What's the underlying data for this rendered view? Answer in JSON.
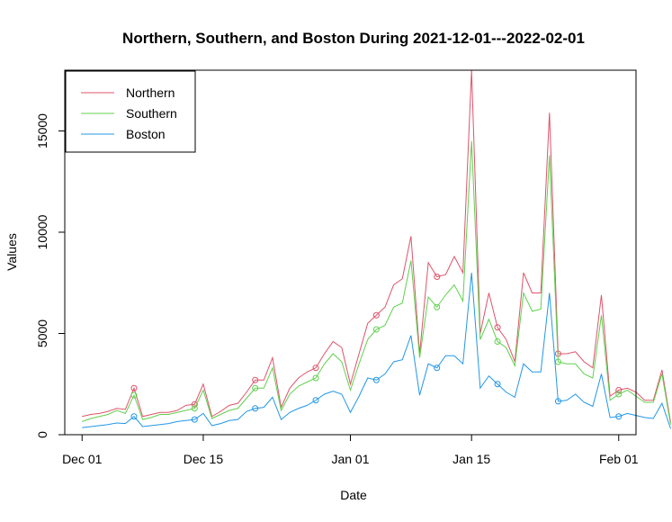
{
  "chart_data": {
    "type": "line",
    "title": "Northern, Southern, and Boston During 2021-12-01---2022-02-01",
    "xlabel": "Date",
    "ylabel": "Values",
    "x_start": "2021-12-01",
    "x_ticks": [
      {
        "label": "Dec 01",
        "date": "2021-12-01"
      },
      {
        "label": "Dec 15",
        "date": "2021-12-15"
      },
      {
        "label": "Jan 01",
        "date": "2022-01-01"
      },
      {
        "label": "Jan 15",
        "date": "2022-01-15"
      },
      {
        "label": "Feb 01",
        "date": "2022-02-01"
      }
    ],
    "y_ticks": [
      0,
      5000,
      10000,
      15000
    ],
    "y_tick_labels": [
      "0",
      "5000",
      "10000",
      "15000"
    ],
    "xlim": [
      "2021-11-29",
      "2022-02-03"
    ],
    "ylim": [
      0,
      18000
    ],
    "grid": false,
    "legend_position": "top-left",
    "marker_every": 7,
    "series": [
      {
        "name": "Northern",
        "color": "#DF536B",
        "values": [
          900,
          1000,
          1050,
          1150,
          1300,
          1250,
          2300,
          900,
          1000,
          1100,
          1100,
          1200,
          1450,
          1500,
          2500,
          900,
          1150,
          1450,
          1550,
          2100,
          2700,
          2700,
          3800,
          1350,
          2300,
          2800,
          3100,
          3300,
          4000,
          4600,
          4300,
          2500,
          4000,
          5500,
          5900,
          6300,
          7400,
          7700,
          9800,
          4000,
          8500,
          7800,
          7900,
          8800,
          8000,
          18000,
          5000,
          7000,
          5300,
          4700,
          3600,
          8000,
          7000,
          7000,
          15900,
          4000,
          4000,
          4100,
          3600,
          3300,
          6900,
          1900,
          2200,
          2300,
          2100,
          1700,
          1700,
          3200,
          600
        ]
      },
      {
        "name": "Southern",
        "color": "#61D04F",
        "values": [
          650,
          800,
          900,
          1000,
          1200,
          1050,
          1950,
          750,
          850,
          1000,
          1000,
          1100,
          1200,
          1300,
          2200,
          800,
          1000,
          1200,
          1300,
          1800,
          2300,
          2300,
          3300,
          1200,
          2000,
          2400,
          2600,
          2800,
          3500,
          4000,
          3600,
          2200,
          3500,
          4700,
          5200,
          5400,
          6300,
          6500,
          8600,
          3800,
          6800,
          6300,
          6900,
          7400,
          6600,
          14500,
          4700,
          5700,
          4600,
          4300,
          3400,
          7000,
          6100,
          6200,
          13800,
          3600,
          3500,
          3500,
          3000,
          2800,
          5900,
          1700,
          2000,
          2200,
          1900,
          1600,
          1600,
          3000,
          500
        ]
      },
      {
        "name": "Boston",
        "color": "#2297E6",
        "values": [
          350,
          400,
          450,
          500,
          580,
          550,
          900,
          400,
          450,
          500,
          550,
          650,
          700,
          750,
          1050,
          450,
          550,
          700,
          750,
          1150,
          1300,
          1350,
          1850,
          750,
          1100,
          1300,
          1450,
          1700,
          2000,
          2150,
          2000,
          1100,
          1900,
          2800,
          2700,
          3000,
          3600,
          3700,
          4900,
          1950,
          3500,
          3300,
          3900,
          3900,
          3500,
          8000,
          2300,
          2900,
          2500,
          2100,
          1850,
          3500,
          3100,
          3100,
          7000,
          1650,
          1700,
          2000,
          1600,
          1400,
          3000,
          850,
          900,
          1050,
          950,
          850,
          800,
          1550,
          300
        ]
      }
    ]
  }
}
